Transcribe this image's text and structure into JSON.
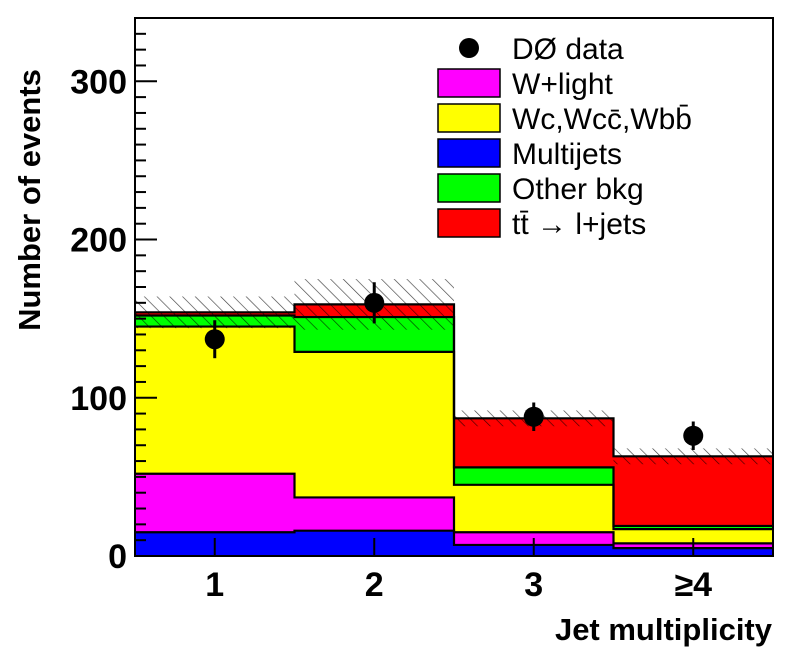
{
  "chart_data": {
    "type": "bar",
    "subtype": "stacked-histogram",
    "xlabel": "Jet multiplicity",
    "ylabel": "Number of events",
    "ylim": [
      0,
      340
    ],
    "yticks": [
      0,
      100,
      200,
      300
    ],
    "categories": [
      "1",
      "2",
      "3",
      "≥4"
    ],
    "series": [
      {
        "name": "Multijets",
        "color": "#0000ff",
        "values": [
          15,
          16,
          7,
          5
        ]
      },
      {
        "name": "W+light",
        "color": "#ff00ff",
        "values": [
          37,
          21,
          8,
          3
        ]
      },
      {
        "name": "Wc,Wcc̄,Wbb̄",
        "color": "#ffff00",
        "values": [
          93,
          92,
          30,
          9
        ]
      },
      {
        "name": "Other bkg",
        "color": "#00ff00",
        "values": [
          7,
          22,
          11,
          2
        ]
      },
      {
        "name": "tt̄ → l+jets",
        "color": "#ff0000",
        "values": [
          2,
          8,
          31,
          44
        ]
      }
    ],
    "totals": [
      154,
      159,
      87,
      63
    ],
    "uncertainty": [
      10,
      16,
      5,
      5
    ],
    "data": {
      "name": "DØ data",
      "values": [
        137,
        160,
        88,
        76
      ],
      "errors": [
        12,
        13,
        9,
        9
      ]
    },
    "legend": {
      "position": "top-right",
      "entries": [
        {
          "label": "DØ data",
          "marker": "dot"
        },
        {
          "label": "W+light",
          "marker": "box",
          "color": "#ff00ff"
        },
        {
          "label": "Wc,Wcc̄,Wbb̄",
          "marker": "box",
          "color": "#ffff00"
        },
        {
          "label": "Multijets",
          "marker": "box",
          "color": "#0000ff"
        },
        {
          "label": "Other bkg",
          "marker": "box",
          "color": "#00ff00"
        },
        {
          "label": "tt̄ → l+jets",
          "marker": "box",
          "color": "#ff0000"
        }
      ]
    }
  }
}
